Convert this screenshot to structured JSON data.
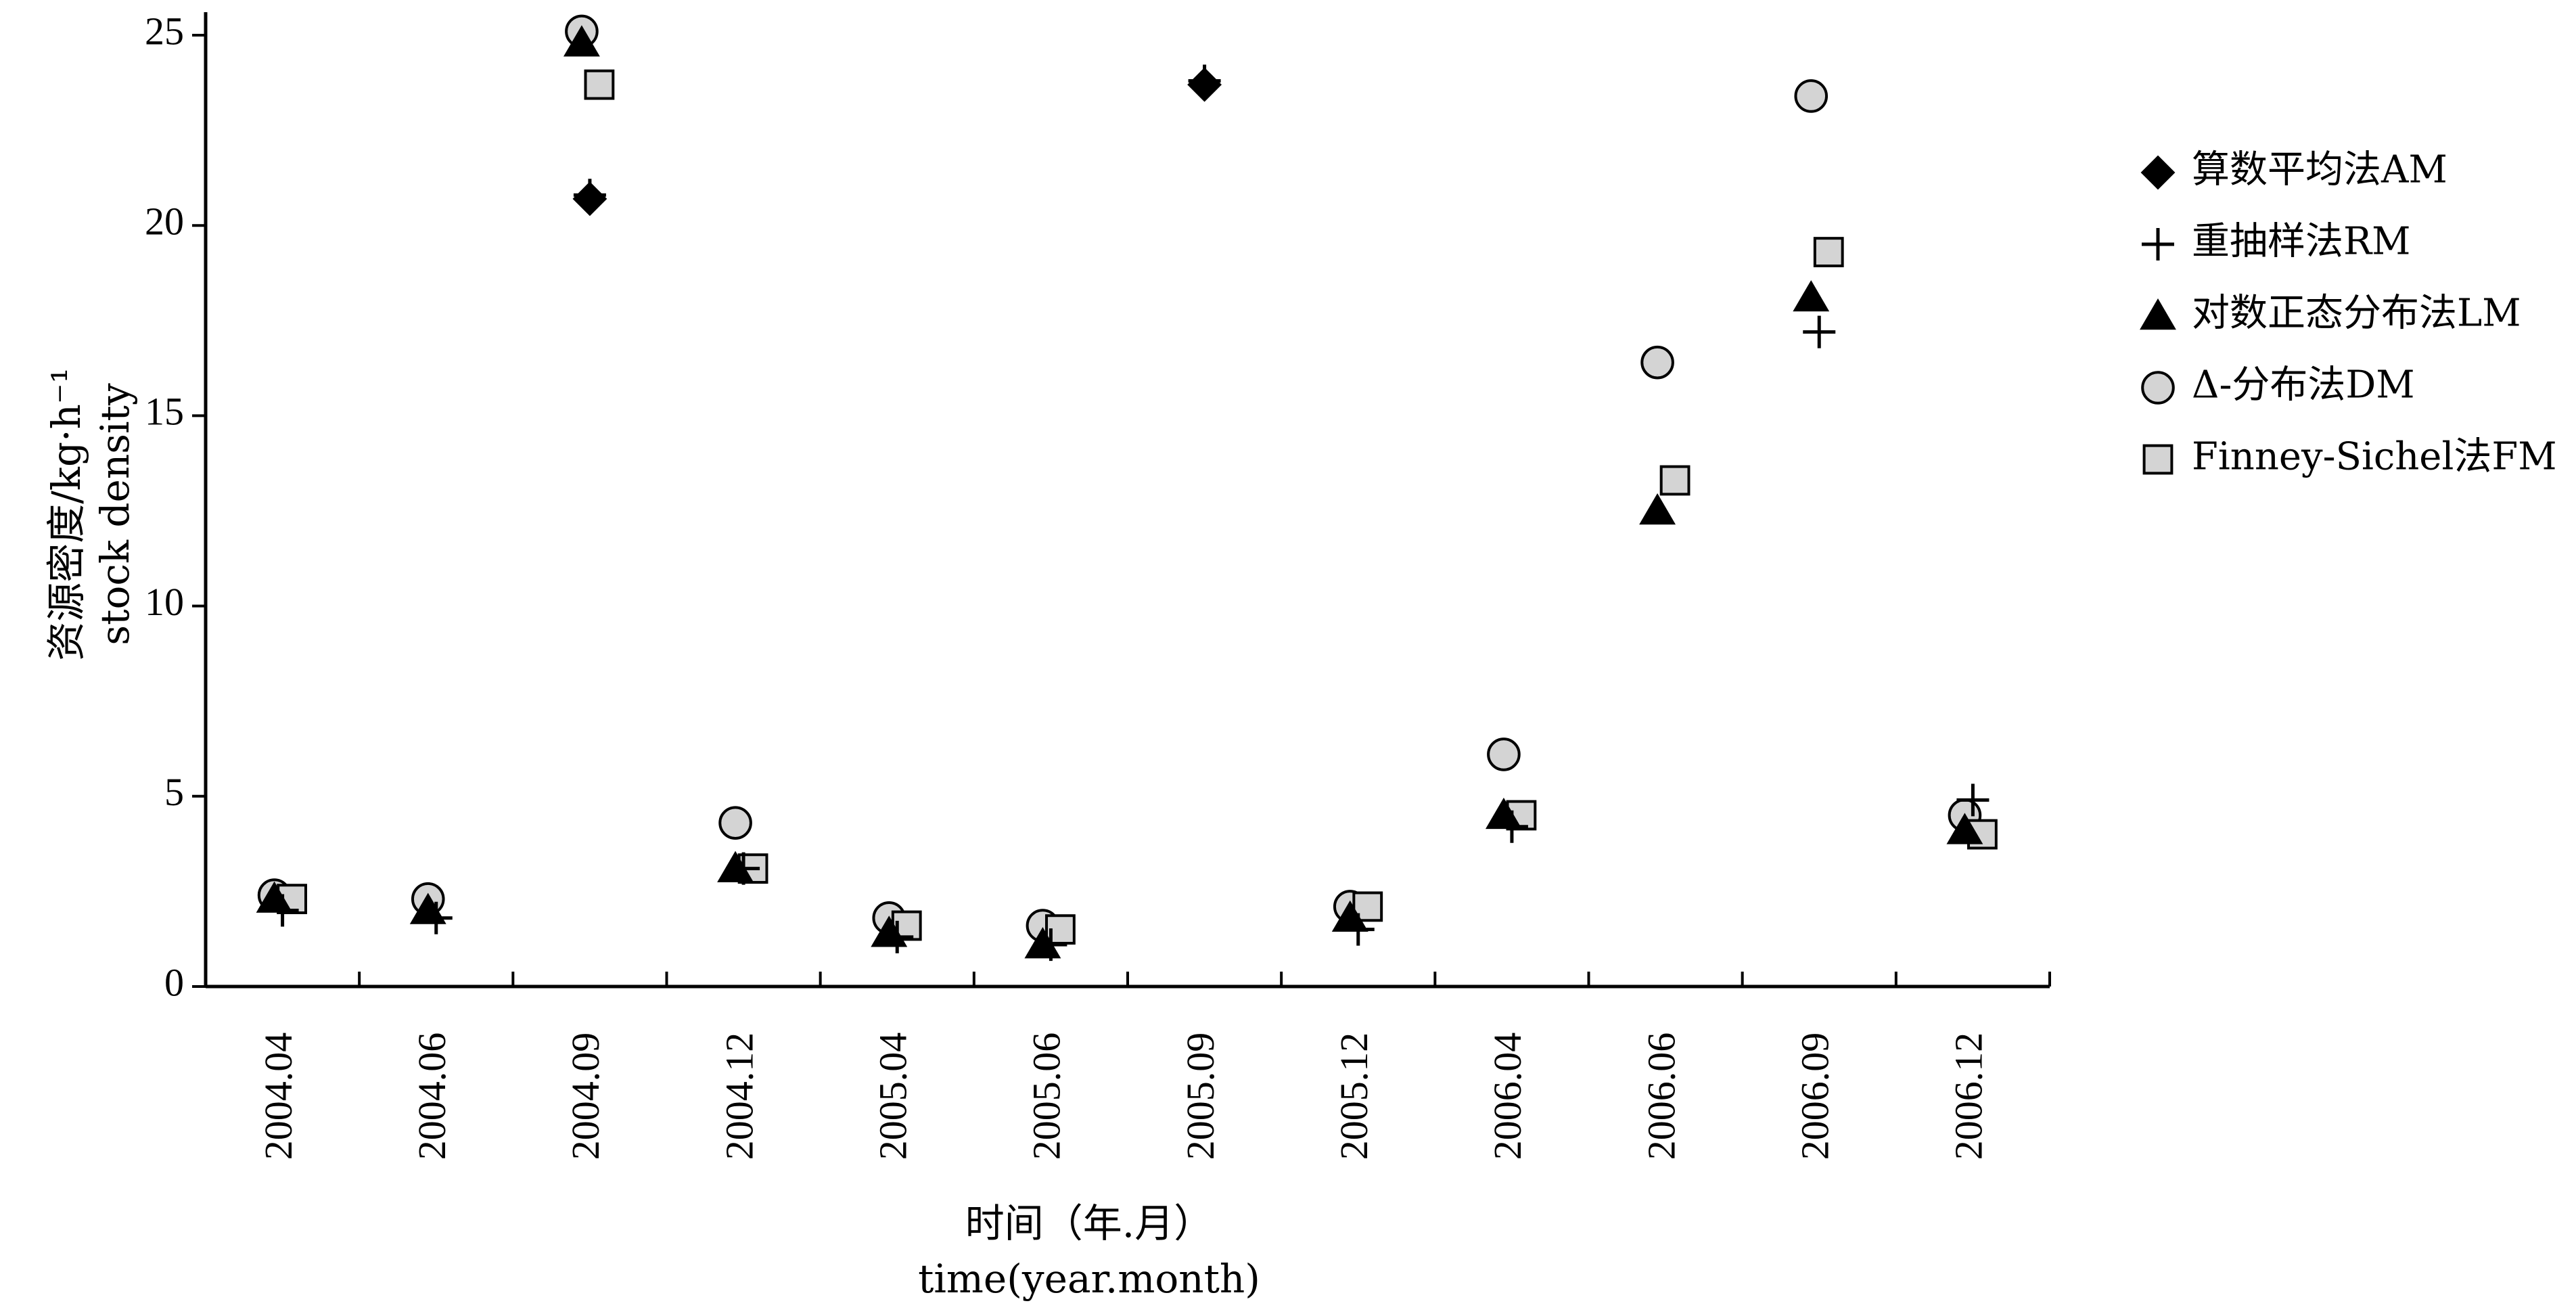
{
  "chart_data": {
    "type": "scatter",
    "title": "",
    "xlabel": "时间（年.月）",
    "xlabel_en": "time(year.month)",
    "ylabel": "资源密度/kg·h⁻¹",
    "ylabel_en": "stock density",
    "ylim": [
      0,
      25
    ],
    "yticks": [
      0,
      5,
      10,
      15,
      20,
      25
    ],
    "categories": [
      "2004.04",
      "2004.06",
      "2004.09",
      "2004.12",
      "2005.04",
      "2005.06",
      "2005.09",
      "2005.12",
      "2006.04",
      "2006.06",
      "2006.09",
      "2006.12"
    ],
    "legend_position": "right",
    "grid": false,
    "series": [
      {
        "name": "算数平均法AM",
        "marker": "diamond",
        "values": [
          null,
          null,
          20.7,
          null,
          null,
          null,
          23.7,
          null,
          null,
          null,
          null,
          null
        ]
      },
      {
        "name": "重抽样法RM",
        "marker": "plus",
        "values": [
          2.0,
          1.8,
          20.8,
          3.1,
          1.3,
          1.1,
          23.8,
          1.5,
          4.2,
          null,
          17.2,
          4.9
        ]
      },
      {
        "name": "对数正态分布法LM",
        "marker": "triangle",
        "values": [
          2.3,
          2.0,
          24.8,
          3.1,
          1.4,
          1.1,
          null,
          1.8,
          4.5,
          12.5,
          18.1,
          4.1
        ]
      },
      {
        "name": "Δ-分布法DM",
        "marker": "circle",
        "values": [
          2.4,
          2.3,
          25.1,
          4.3,
          1.8,
          1.6,
          null,
          2.1,
          6.1,
          16.4,
          23.4,
          4.5
        ]
      },
      {
        "name": "Finney-Sichel法FM",
        "marker": "square",
        "values": [
          2.3,
          null,
          23.7,
          3.1,
          1.6,
          1.5,
          null,
          2.1,
          4.5,
          13.3,
          19.3,
          4.0
        ]
      }
    ]
  }
}
